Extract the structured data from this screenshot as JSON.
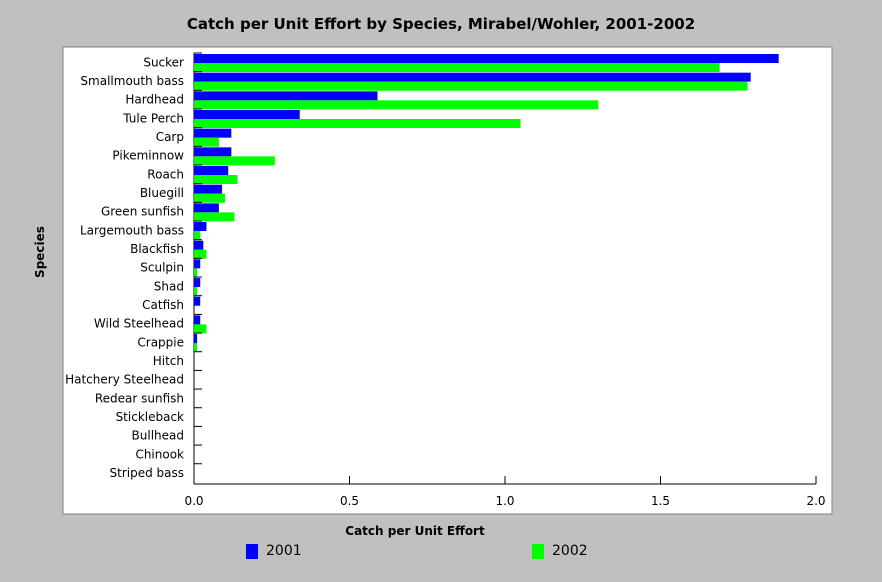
{
  "chart_data": {
    "type": "bar",
    "orientation": "horizontal",
    "title": "Catch per Unit Effort by Species, Mirabel/Wohler, 2001-2002",
    "xlabel": "Catch per Unit Effort",
    "ylabel": "Species",
    "xlim": [
      0,
      2.0
    ],
    "xticks": [
      "0.0",
      "0.5",
      "1.0",
      "1.5",
      "2.0"
    ],
    "grid": false,
    "legend_position": "bottom",
    "categories": [
      "Sucker",
      "Smallmouth bass",
      "Hardhead",
      "Tule Perch",
      "Carp",
      "Pikeminnow",
      "Roach",
      "Bluegill",
      "Green sunfish",
      "Largemouth bass",
      "Blackfish",
      "Sculpin",
      "Shad",
      "Catfish",
      "Wild Steelhead",
      "Crappie",
      "Hitch",
      "Hatchery Steelhead",
      "Redear sunfish",
      "Stickleback",
      "Bullhead",
      "Chinook",
      "Striped bass"
    ],
    "series": [
      {
        "name": "2001",
        "color": "#0000ff",
        "values": [
          1.88,
          1.79,
          0.59,
          0.34,
          0.12,
          0.12,
          0.11,
          0.09,
          0.08,
          0.04,
          0.03,
          0.02,
          0.02,
          0.02,
          0.02,
          0.01,
          0.0,
          0.0,
          0.0,
          0.0,
          0.0,
          0.0,
          0.0
        ]
      },
      {
        "name": "2002",
        "color": "#00ff00",
        "values": [
          1.69,
          1.78,
          1.3,
          1.05,
          0.08,
          0.26,
          0.14,
          0.1,
          0.13,
          0.02,
          0.04,
          0.01,
          0.01,
          0.0,
          0.04,
          0.01,
          0.0,
          0.0,
          0.0,
          0.0,
          0.0,
          0.0,
          0.0
        ]
      }
    ]
  },
  "colors": {
    "background": "#c0c0c0",
    "plot_area": "#ffffff",
    "series_2001": "#0000ff",
    "series_2002": "#00ff00"
  }
}
